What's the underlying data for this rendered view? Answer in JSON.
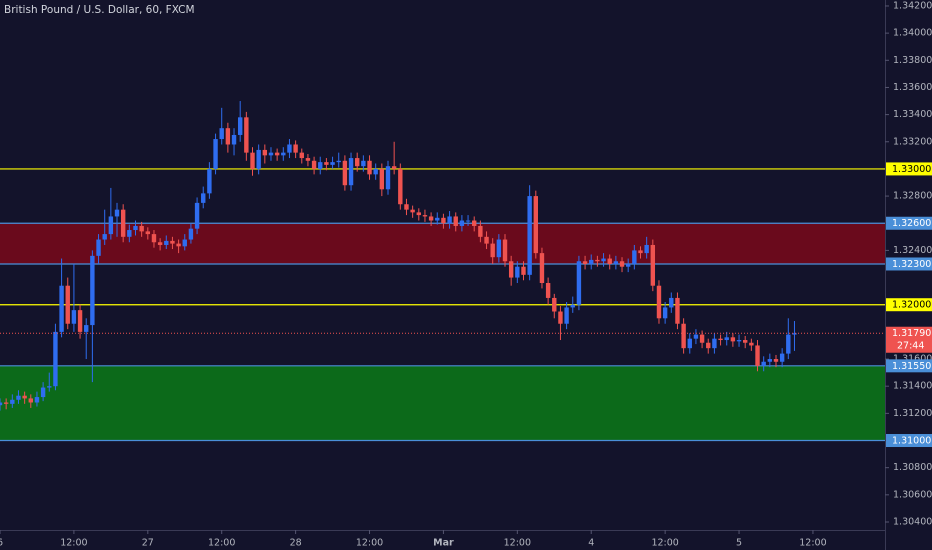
{
  "chart_data": {
    "type": "candlestick",
    "title": "British Pound / U.S. Dollar, 60, FXCM",
    "up_color": "#2f6df0",
    "down_color": "#ef5350",
    "background": "#13132b",
    "xlim": [
      0,
      143.7
    ],
    "xticks": [
      {
        "value": 0,
        "label": "6"
      },
      {
        "value": 12,
        "label": "12:00"
      },
      {
        "value": 24,
        "label": "27"
      },
      {
        "value": 36,
        "label": "12:00"
      },
      {
        "value": 48,
        "label": "28"
      },
      {
        "value": 60,
        "label": "12:00"
      },
      {
        "value": 72,
        "label": "Mar"
      },
      {
        "value": 84,
        "label": "12:00"
      },
      {
        "value": 96,
        "label": "4"
      },
      {
        "value": 108,
        "label": "12:00"
      },
      {
        "value": 120,
        "label": "5"
      },
      {
        "value": 132,
        "label": "12:00"
      }
    ],
    "ylim": [
      1.30341,
      1.34244
    ],
    "yticks": [
      {
        "value": 1.342,
        "label": "1.34200"
      },
      {
        "value": 1.34,
        "label": "1.34000"
      },
      {
        "value": 1.338,
        "label": "1.33800"
      },
      {
        "value": 1.336,
        "label": "1.33600"
      },
      {
        "value": 1.334,
        "label": "1.33400"
      },
      {
        "value": 1.332,
        "label": "1.33200"
      },
      {
        "value": 1.328,
        "label": "1.32800"
      },
      {
        "value": 1.324,
        "label": "1.32400"
      },
      {
        "value": 1.316,
        "label": "1.31600"
      },
      {
        "value": 1.314,
        "label": "1.31400"
      },
      {
        "value": 1.312,
        "label": "1.31200"
      },
      {
        "value": 1.308,
        "label": "1.30800"
      },
      {
        "value": 1.306,
        "label": "1.30600"
      },
      {
        "value": 1.304,
        "label": "1.30400"
      }
    ],
    "zones": [
      {
        "from": 1.323,
        "to": 1.326,
        "color": "#6a0a1c"
      },
      {
        "from": 1.31,
        "to": 1.3155,
        "color": "#0c6a1a"
      }
    ],
    "levels": [
      {
        "value": 1.33,
        "label": "1.33000",
        "color": "#ffff00"
      },
      {
        "value": 1.326,
        "label": "1.32600",
        "color": "#4a8fd8"
      },
      {
        "value": 1.323,
        "label": "1.32300",
        "color": "#4a8fd8"
      },
      {
        "value": 1.32,
        "label": "1.32000",
        "color": "#ffff00"
      },
      {
        "value": 1.3155,
        "label": "1.31550",
        "color": "#4a8fd8"
      },
      {
        "value": 1.31,
        "label": "1.31000",
        "color": "#4a8fd8"
      }
    ],
    "last_price": {
      "value": 1.3179,
      "label": "1.31790",
      "countdown": "27:44",
      "color": "#ef5350"
    },
    "ohlc": [
      [
        1.3126,
        1.3131,
        1.3122,
        1.3128
      ],
      [
        1.3128,
        1.3131,
        1.3123,
        1.3127
      ],
      [
        1.3127,
        1.3134,
        1.3124,
        1.313
      ],
      [
        1.313,
        1.3137,
        1.3127,
        1.3133
      ],
      [
        1.3133,
        1.3136,
        1.3127,
        1.3131
      ],
      [
        1.3131,
        1.3134,
        1.3124,
        1.3128
      ],
      [
        1.3128,
        1.3136,
        1.3125,
        1.3132
      ],
      [
        1.3132,
        1.3143,
        1.3129,
        1.3139
      ],
      [
        1.3139,
        1.315,
        1.3136,
        1.314
      ],
      [
        1.314,
        1.3186,
        1.3137,
        1.318
      ],
      [
        1.318,
        1.3234,
        1.3176,
        1.3214
      ],
      [
        1.3214,
        1.322,
        1.3182,
        1.3186
      ],
      [
        1.3186,
        1.323,
        1.318,
        1.3196
      ],
      [
        1.3196,
        1.32,
        1.3175,
        1.318
      ],
      [
        1.318,
        1.319,
        1.316,
        1.3185
      ],
      [
        1.3185,
        1.324,
        1.3143,
        1.3236
      ],
      [
        1.3236,
        1.3252,
        1.323,
        1.3248
      ],
      [
        1.3248,
        1.327,
        1.3244,
        1.3252
      ],
      [
        1.3252,
        1.3286,
        1.3248,
        1.3265
      ],
      [
        1.3265,
        1.3275,
        1.325,
        1.327
      ],
      [
        1.327,
        1.3274,
        1.3246,
        1.325
      ],
      [
        1.325,
        1.3259,
        1.3246,
        1.3255
      ],
      [
        1.3255,
        1.3262,
        1.3251,
        1.3258
      ],
      [
        1.3258,
        1.3261,
        1.325,
        1.3254
      ],
      [
        1.3254,
        1.3257,
        1.3248,
        1.3252
      ],
      [
        1.3252,
        1.3255,
        1.3242,
        1.3246
      ],
      [
        1.3246,
        1.3249,
        1.324,
        1.3244
      ],
      [
        1.3244,
        1.3251,
        1.3241,
        1.3247
      ],
      [
        1.3247,
        1.325,
        1.3241,
        1.3245
      ],
      [
        1.3245,
        1.3248,
        1.3238,
        1.3243
      ],
      [
        1.3243,
        1.3252,
        1.324,
        1.3248
      ],
      [
        1.3248,
        1.326,
        1.3245,
        1.3256
      ],
      [
        1.3256,
        1.3279,
        1.3252,
        1.3275
      ],
      [
        1.3275,
        1.3287,
        1.3271,
        1.3282
      ],
      [
        1.3282,
        1.3305,
        1.3278,
        1.33
      ],
      [
        1.33,
        1.3326,
        1.3296,
        1.3322
      ],
      [
        1.3322,
        1.3345,
        1.3318,
        1.333
      ],
      [
        1.333,
        1.3334,
        1.3312,
        1.3318
      ],
      [
        1.3318,
        1.333,
        1.331,
        1.3325
      ],
      [
        1.3325,
        1.335,
        1.332,
        1.3338
      ],
      [
        1.3338,
        1.3342,
        1.3306,
        1.3312
      ],
      [
        1.3312,
        1.3316,
        1.3295,
        1.33
      ],
      [
        1.33,
        1.3318,
        1.3296,
        1.3314
      ],
      [
        1.3314,
        1.3318,
        1.3304,
        1.331
      ],
      [
        1.331,
        1.3316,
        1.3306,
        1.3312
      ],
      [
        1.3312,
        1.3315,
        1.3306,
        1.331
      ],
      [
        1.331,
        1.3316,
        1.3306,
        1.3312
      ],
      [
        1.3312,
        1.3322,
        1.3308,
        1.3318
      ],
      [
        1.3318,
        1.3321,
        1.3308,
        1.3312
      ],
      [
        1.3312,
        1.3315,
        1.3304,
        1.3308
      ],
      [
        1.3308,
        1.3311,
        1.3302,
        1.3306
      ],
      [
        1.3306,
        1.3309,
        1.3296,
        1.33
      ],
      [
        1.33,
        1.3309,
        1.3296,
        1.3305
      ],
      [
        1.3305,
        1.3308,
        1.3299,
        1.3303
      ],
      [
        1.3303,
        1.3309,
        1.33,
        1.3305
      ],
      [
        1.3305,
        1.3312,
        1.3301,
        1.3306
      ],
      [
        1.3306,
        1.331,
        1.3284,
        1.3288
      ],
      [
        1.3288,
        1.3312,
        1.3284,
        1.3308
      ],
      [
        1.3308,
        1.3312,
        1.3298,
        1.3302
      ],
      [
        1.3302,
        1.331,
        1.3298,
        1.3306
      ],
      [
        1.3306,
        1.331,
        1.3292,
        1.3296
      ],
      [
        1.3296,
        1.3304,
        1.3292,
        1.33
      ],
      [
        1.33,
        1.3304,
        1.328,
        1.3285
      ],
      [
        1.3285,
        1.3306,
        1.3281,
        1.3302
      ],
      [
        1.3302,
        1.332,
        1.3296,
        1.33
      ],
      [
        1.33,
        1.3304,
        1.327,
        1.3274
      ],
      [
        1.3274,
        1.3278,
        1.3266,
        1.327
      ],
      [
        1.327,
        1.3273,
        1.3264,
        1.3268
      ],
      [
        1.3268,
        1.3271,
        1.3262,
        1.3266
      ],
      [
        1.3266,
        1.327,
        1.3261,
        1.3265
      ],
      [
        1.3265,
        1.3268,
        1.3258,
        1.3262
      ],
      [
        1.3262,
        1.3268,
        1.3259,
        1.3264
      ],
      [
        1.3264,
        1.3267,
        1.3256,
        1.326
      ],
      [
        1.326,
        1.3269,
        1.3256,
        1.3265
      ],
      [
        1.3265,
        1.3268,
        1.3254,
        1.3258
      ],
      [
        1.3258,
        1.3266,
        1.3254,
        1.3262
      ],
      [
        1.3262,
        1.3266,
        1.3258,
        1.3262
      ],
      [
        1.3262,
        1.3265,
        1.3254,
        1.3258
      ],
      [
        1.3258,
        1.3262,
        1.3246,
        1.325
      ],
      [
        1.325,
        1.3254,
        1.3241,
        1.3245
      ],
      [
        1.3245,
        1.3249,
        1.323,
        1.3235
      ],
      [
        1.3235,
        1.3252,
        1.3231,
        1.3248
      ],
      [
        1.3248,
        1.3252,
        1.3228,
        1.3232
      ],
      [
        1.3232,
        1.3236,
        1.3214,
        1.322
      ],
      [
        1.322,
        1.3232,
        1.3216,
        1.3228
      ],
      [
        1.3228,
        1.3232,
        1.3218,
        1.3222
      ],
      [
        1.3222,
        1.3288,
        1.3218,
        1.328
      ],
      [
        1.328,
        1.3284,
        1.3234,
        1.3238
      ],
      [
        1.3238,
        1.3242,
        1.3212,
        1.3216
      ],
      [
        1.3216,
        1.322,
        1.32,
        1.3205
      ],
      [
        1.3205,
        1.3208,
        1.319,
        1.3195
      ],
      [
        1.3195,
        1.3199,
        1.3174,
        1.3186
      ],
      [
        1.3186,
        1.3202,
        1.3182,
        1.3198
      ],
      [
        1.3198,
        1.3206,
        1.3194,
        1.32
      ],
      [
        1.32,
        1.3236,
        1.3196,
        1.3232
      ],
      [
        1.3232,
        1.3236,
        1.3226,
        1.323
      ],
      [
        1.323,
        1.3237,
        1.3226,
        1.3233
      ],
      [
        1.3233,
        1.3236,
        1.3228,
        1.3232
      ],
      [
        1.3232,
        1.3238,
        1.3228,
        1.3234
      ],
      [
        1.3234,
        1.3237,
        1.3226,
        1.323
      ],
      [
        1.323,
        1.3236,
        1.3226,
        1.3232
      ],
      [
        1.3232,
        1.3235,
        1.3224,
        1.3228
      ],
      [
        1.3228,
        1.3234,
        1.3224,
        1.323
      ],
      [
        1.323,
        1.3244,
        1.3226,
        1.324
      ],
      [
        1.324,
        1.3243,
        1.3234,
        1.3238
      ],
      [
        1.3238,
        1.325,
        1.3234,
        1.3244
      ],
      [
        1.3244,
        1.3248,
        1.321,
        1.3214
      ],
      [
        1.3214,
        1.3218,
        1.3186,
        1.319
      ],
      [
        1.319,
        1.3202,
        1.3186,
        1.3198
      ],
      [
        1.3198,
        1.3209,
        1.3194,
        1.3205
      ],
      [
        1.3205,
        1.3209,
        1.3182,
        1.3186
      ],
      [
        1.3186,
        1.319,
        1.3164,
        1.3168
      ],
      [
        1.3168,
        1.3179,
        1.3164,
        1.3175
      ],
      [
        1.3175,
        1.3182,
        1.3171,
        1.3178
      ],
      [
        1.3178,
        1.3181,
        1.3168,
        1.3172
      ],
      [
        1.3172,
        1.3175,
        1.3164,
        1.3168
      ],
      [
        1.3168,
        1.3179,
        1.3164,
        1.3175
      ],
      [
        1.3175,
        1.3178,
        1.317,
        1.3174
      ],
      [
        1.3174,
        1.318,
        1.317,
        1.3176
      ],
      [
        1.3176,
        1.3179,
        1.3169,
        1.3173
      ],
      [
        1.3173,
        1.3178,
        1.3169,
        1.3174
      ],
      [
        1.3174,
        1.3177,
        1.3168,
        1.3172
      ],
      [
        1.3172,
        1.3175,
        1.3166,
        1.317
      ],
      [
        1.317,
        1.3174,
        1.3151,
        1.3155
      ],
      [
        1.3155,
        1.3162,
        1.3151,
        1.3158
      ],
      [
        1.3158,
        1.3164,
        1.3154,
        1.316
      ],
      [
        1.316,
        1.3163,
        1.3154,
        1.3158
      ],
      [
        1.3158,
        1.3168,
        1.3154,
        1.3164
      ],
      [
        1.3164,
        1.319,
        1.316,
        1.3178
      ],
      [
        1.3178,
        1.3188,
        1.3166,
        1.3179
      ]
    ]
  }
}
